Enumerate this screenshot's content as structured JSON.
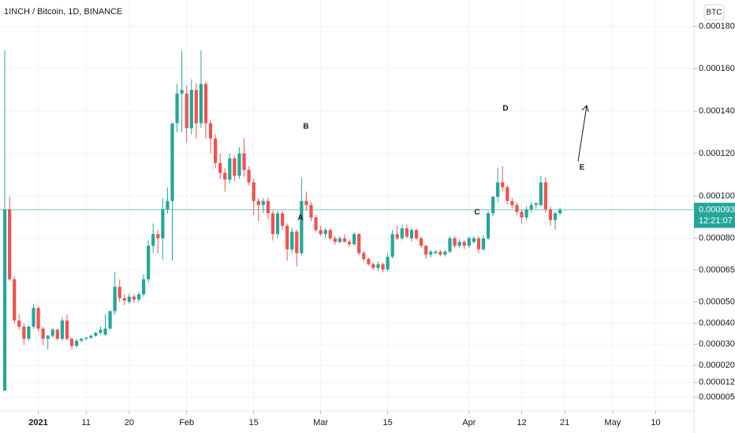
{
  "chart_data": {
    "type": "candlestick",
    "title": "1INCH / Bitcoin, 1D, BINANCE",
    "currency": "BTC",
    "up_color": "#26a69a",
    "down_color": "#ef5350",
    "grid": true,
    "x": [
      "2020-12-25",
      "2020-12-26",
      "2020-12-27",
      "2020-12-28",
      "2020-12-29",
      "2020-12-30",
      "2020-12-31",
      "2021-01-01",
      "2021-01-02",
      "2021-01-03",
      "2021-01-04",
      "2021-01-05",
      "2021-01-06",
      "2021-01-07",
      "2021-01-08",
      "2021-01-09",
      "2021-01-10",
      "2021-01-11",
      "2021-01-12",
      "2021-01-13",
      "2021-01-14",
      "2021-01-15",
      "2021-01-16",
      "2021-01-17",
      "2021-01-18",
      "2021-01-19",
      "2021-01-20",
      "2021-01-21",
      "2021-01-22",
      "2021-01-23",
      "2021-01-24",
      "2021-01-25",
      "2021-01-26",
      "2021-01-27",
      "2021-01-28",
      "2021-01-29",
      "2021-01-30",
      "2021-01-31",
      "2021-02-01",
      "2021-02-02",
      "2021-02-03",
      "2021-02-04",
      "2021-02-05",
      "2021-02-06",
      "2021-02-07",
      "2021-02-08",
      "2021-02-09",
      "2021-02-10",
      "2021-02-11",
      "2021-02-12",
      "2021-02-13",
      "2021-02-14",
      "2021-02-15",
      "2021-02-16",
      "2021-02-17",
      "2021-02-18",
      "2021-02-19",
      "2021-02-20",
      "2021-02-21",
      "2021-02-22",
      "2021-02-23",
      "2021-02-24",
      "2021-02-25",
      "2021-02-26",
      "2021-02-27",
      "2021-02-28",
      "2021-03-01",
      "2021-03-02",
      "2021-03-03",
      "2021-03-04",
      "2021-03-05",
      "2021-03-06",
      "2021-03-07",
      "2021-03-08",
      "2021-03-09",
      "2021-03-10",
      "2021-03-11",
      "2021-03-12",
      "2021-03-13",
      "2021-03-14",
      "2021-03-15",
      "2021-03-16",
      "2021-03-17",
      "2021-03-18",
      "2021-03-19",
      "2021-03-20",
      "2021-03-21",
      "2021-03-22",
      "2021-03-23",
      "2021-03-24",
      "2021-03-25",
      "2021-03-26",
      "2021-03-27",
      "2021-03-28",
      "2021-03-29",
      "2021-03-30",
      "2021-03-31",
      "2021-04-01",
      "2021-04-02",
      "2021-04-03",
      "2021-04-04",
      "2021-04-05",
      "2021-04-06",
      "2021-04-07",
      "2021-04-08",
      "2021-04-09",
      "2021-04-10",
      "2021-04-11",
      "2021-04-12",
      "2021-04-13",
      "2021-04-14",
      "2021-04-15",
      "2021-04-16",
      "2021-04-17",
      "2021-04-18",
      "2021-04-19",
      "2021-04-20"
    ],
    "open": [
      8.1e-06,
      9.37e-05,
      6.07e-05,
      4.12e-05,
      3.83e-05,
      3.26e-05,
      3.83e-05,
      4.71e-05,
      3.74e-05,
      3.26e-05,
      3.4e-05,
      3.69e-05,
      3.26e-05,
      4.12e-05,
      3.26e-05,
      2.92e-05,
      3.17e-05,
      3.26e-05,
      3.31e-05,
      3.4e-05,
      3.54e-05,
      3.46e-05,
      3.74e-05,
      4.56e-05,
      5.71e-05,
      5.18e-05,
      5e-05,
      5.25e-05,
      5.11e-05,
      5.36e-05,
      6.07e-05,
      7.65e-05,
      8.2e-05,
      8e-05,
      9.37e-05,
      9.76e-05,
      0.0001343,
      0.0001483,
      0.0001483,
      0.0001319,
      0.00015,
      0.0001343,
      0.0001528,
      0.0001343,
      0.0001271,
      0.0001155,
      0.0001109,
      0.0001077,
      0.0001177,
      0.0001095,
      0.00012,
      0.0001123,
      0.0001064,
      9.76e-05,
      9.57e-05,
      9.76e-05,
      9.18e-05,
      8.2e-05,
      9.18e-05,
      8.59e-05,
      7.48e-05,
      8.31e-05,
      7.3e-05,
      9.76e-05,
      9.57e-05,
      8.98e-05,
      8.39e-05,
      8.2e-05,
      8.39e-05,
      8e-05,
      7.83e-05,
      8e-05,
      7.83e-05,
      7.72e-05,
      8.2e-05,
      7.3e-05,
      7.02e-05,
      6.78e-05,
      6.6e-05,
      6.78e-05,
      6.53e-05,
      7.13e-05,
      8.2e-05,
      8e-05,
      8.47e-05,
      8e-05,
      8.39e-05,
      8e-05,
      7.65e-05,
      7.23e-05,
      7.3e-05,
      7.37e-05,
      7.23e-05,
      7.37e-05,
      8e-05,
      7.65e-05,
      7.83e-05,
      7.65e-05,
      7.83e-05,
      8e-05,
      7.48e-05,
      8e-05,
      9.18e-05,
      9.96e-05,
      0.0001064,
      0.0001041,
      9.76e-05,
      9.57e-05,
      9.25e-05,
      8.98e-05,
      9.37e-05,
      9.57e-05,
      9.57e-05,
      0.0001064,
      9.37e-05,
      8.86e-05,
      9.18e-05
    ],
    "high": [
      0.0001686,
      9.96e-05,
      6.2e-05,
      4.41e-05,
      3.97e-05,
      3.9e-05,
      4.9e-05,
      4.8e-05,
      3.83e-05,
      3.45e-05,
      3.75e-05,
      3.74e-05,
      4.26e-05,
      4.41e-05,
      3.31e-05,
      3.26e-05,
      3.31e-05,
      3.35e-05,
      3.45e-05,
      3.6e-05,
      3.83e-05,
      4.41e-05,
      4.6e-05,
      6.43e-05,
      6.07e-05,
      5.36e-05,
      5.4e-05,
      5.36e-05,
      5.5e-05,
      6.3e-05,
      7.9e-05,
      8.7e-05,
      8.4e-05,
      9.9e-05,
      0.000104,
      0.0001343,
      0.0001528,
      0.0001686,
      0.000152,
      0.000155,
      0.000153,
      0.0001686,
      0.000154,
      0.000136,
      0.000129,
      0.00012,
      0.000113,
      0.00012,
      0.000119,
      0.000123,
      0.0001271,
      0.000114,
      0.000108,
      9.9e-05,
      9.9e-05,
      9.9e-05,
      9.3e-05,
      9.3e-05,
      9.3e-05,
      8.7e-05,
      8.5e-05,
      8.4e-05,
      0.0001086,
      0.000102,
      9.7e-05,
      9.1e-05,
      8.6e-05,
      8.5e-05,
      8.45e-05,
      8.1e-05,
      8.1e-05,
      8.2e-05,
      7.95e-05,
      8.3e-05,
      8.25e-05,
      7.4e-05,
      7.1e-05,
      6.85e-05,
      6.9e-05,
      6.85e-05,
      7.3e-05,
      8.4e-05,
      8.6e-05,
      8.65e-05,
      8.65e-05,
      8.5e-05,
      8.45e-05,
      8.1e-05,
      7.7e-05,
      7.45e-05,
      7.45e-05,
      7.45e-05,
      7.45e-05,
      8.1e-05,
      8.1e-05,
      7.95e-05,
      7.9e-05,
      8.1e-05,
      8.1e-05,
      8.1e-05,
      8.15e-05,
      9.3e-05,
      0.0001,
      0.000113,
      0.000114,
      0.000105,
      9.9e-05,
      9.7e-05,
      9.35e-05,
      9.5e-05,
      9.7e-05,
      9.7e-05,
      0.0001095,
      0.000109,
      9.5e-05,
      9.25e-05,
      9.45e-05
    ],
    "low": [
      8.1e-06,
      6e-05,
      3.97e-05,
      3.69e-05,
      2.97e-05,
      3.17e-05,
      3.74e-05,
      3.6e-05,
      2.97e-05,
      2.76e-05,
      3.31e-05,
      3.17e-05,
      3.17e-05,
      3.17e-05,
      2.76e-05,
      2.87e-05,
      3.1e-05,
      3.2e-05,
      3.26e-05,
      3.35e-05,
      3.46e-05,
      3.4e-05,
      3.69e-05,
      4.41e-05,
      5e-05,
      4.85e-05,
      4.9e-05,
      4.95e-05,
      5e-05,
      5.25e-05,
      5.9e-05,
      7.3e-05,
      7.3e-05,
      7e-05,
      9.18e-05,
      6.95e-05,
      0.00013,
      0.00013,
      0.000125,
      0.000129,
      0.0001271,
      0.0001319,
      0.0001271,
      0.00012,
      0.000113,
      0.000108,
      0.000102,
      0.000106,
      0.000107,
      0.000108,
      0.000109,
      0.000105,
      9.1e-05,
      8.8e-05,
      9.2e-05,
      8.9e-05,
      7.9e-05,
      8e-05,
      8.4e-05,
      6.95e-05,
      7.3e-05,
      6.67e-05,
      7.2e-05,
      9.3e-05,
      8.8e-05,
      8.3e-05,
      8.1e-05,
      8e-05,
      7.9e-05,
      7.7e-05,
      7.75e-05,
      7.8e-05,
      7.6e-05,
      7.65e-05,
      7.2e-05,
      6.9e-05,
      6.7e-05,
      6.5e-05,
      6.45e-05,
      6.4e-05,
      6.45e-05,
      7.05e-05,
      7.9e-05,
      7.9e-05,
      8e-05,
      7.85e-05,
      7.9e-05,
      7.55e-05,
      7.05e-05,
      7.1e-05,
      7.25e-05,
      7.15e-05,
      7.15e-05,
      7.3e-05,
      7.55e-05,
      7.55e-05,
      7.5e-05,
      7.55e-05,
      7.75e-05,
      7.3e-05,
      7.4e-05,
      7.9e-05,
      9.05e-05,
      9.7e-05,
      0.000102,
      9.6e-05,
      9.4e-05,
      9.1e-05,
      8.7e-05,
      8.85e-05,
      9.2e-05,
      9.4e-05,
      9.5e-05,
      9.2e-05,
      8.6e-05,
      8.4e-05,
      9.1e-05
    ],
    "close": [
      9.37e-05,
      6.07e-05,
      4.12e-05,
      3.83e-05,
      3.26e-05,
      3.83e-05,
      4.71e-05,
      3.74e-05,
      3.26e-05,
      3.4e-05,
      3.69e-05,
      3.26e-05,
      4.12e-05,
      3.26e-05,
      2.92e-05,
      3.17e-05,
      3.26e-05,
      3.31e-05,
      3.4e-05,
      3.54e-05,
      3.69e-05,
      3.74e-05,
      4.56e-05,
      5.71e-05,
      5.18e-05,
      5.07e-05,
      5.25e-05,
      5.11e-05,
      5.36e-05,
      6.07e-05,
      7.65e-05,
      8.2e-05,
      8e-05,
      9.37e-05,
      9.76e-05,
      0.0001343,
      0.0001483,
      0.00015,
      0.0001319,
      0.00015,
      0.0001343,
      0.0001528,
      0.0001343,
      0.0001271,
      0.0001155,
      0.0001109,
      0.0001077,
      0.0001177,
      0.0001095,
      0.00012,
      0.0001123,
      0.0001064,
      9.76e-05,
      9.57e-05,
      9.76e-05,
      9.18e-05,
      8.2e-05,
      9.18e-05,
      8.59e-05,
      7.48e-05,
      8.31e-05,
      7.3e-05,
      9.76e-05,
      9.57e-05,
      8.98e-05,
      8.39e-05,
      8.2e-05,
      8.39e-05,
      8e-05,
      7.83e-05,
      8e-05,
      7.83e-05,
      7.72e-05,
      8.2e-05,
      7.3e-05,
      7.02e-05,
      6.78e-05,
      6.6e-05,
      6.78e-05,
      6.53e-05,
      7.13e-05,
      8.2e-05,
      8e-05,
      8.47e-05,
      8.08e-05,
      8.39e-05,
      8e-05,
      7.65e-05,
      7.23e-05,
      7.37e-05,
      7.37e-05,
      7.23e-05,
      7.37e-05,
      8e-05,
      7.65e-05,
      7.83e-05,
      7.65e-05,
      8e-05,
      8e-05,
      7.48e-05,
      8e-05,
      9.18e-05,
      9.96e-05,
      0.0001064,
      0.0001041,
      9.76e-05,
      9.57e-05,
      9.25e-05,
      8.98e-05,
      9.37e-05,
      9.57e-05,
      9.65e-05,
      0.0001064,
      9.37e-05,
      8.86e-05,
      9.18e-05,
      9.343e-05
    ],
    "xlim": [
      "2020-12-24",
      "2021-05-18"
    ],
    "xticks": [
      {
        "value": "2021-01-01",
        "label": "2021"
      },
      {
        "value": "2021-01-11",
        "label": "11"
      },
      {
        "value": "2021-01-20",
        "label": "20"
      },
      {
        "value": "2021-02-01",
        "label": "Feb"
      },
      {
        "value": "2021-02-15",
        "label": "15"
      },
      {
        "value": "2021-03-01",
        "label": "Mar"
      },
      {
        "value": "2021-03-15",
        "label": "15"
      },
      {
        "value": "2021-04-01",
        "label": "Apr"
      },
      {
        "value": "2021-04-12",
        "label": "12"
      },
      {
        "value": "2021-04-21",
        "label": "21"
      },
      {
        "value": "2021-05-01",
        "label": "May"
      },
      {
        "value": "2021-05-10",
        "label": "10"
      }
    ],
    "ylim": [
      3e-06,
      0.000185
    ],
    "yticks": [
      {
        "value": 0.00018,
        "label": "0.00018000"
      },
      {
        "value": 0.00016,
        "label": "0.00016000"
      },
      {
        "value": 0.00014,
        "label": "0.00014000"
      },
      {
        "value": 0.00012,
        "label": "0.00012000"
      },
      {
        "value": 0.0001,
        "label": "0.00010000"
      },
      {
        "value": 8e-05,
        "label": "0.00008000"
      },
      {
        "value": 6.5e-05,
        "label": "0.00006500"
      },
      {
        "value": 5e-05,
        "label": "0.00005000"
      },
      {
        "value": 4e-05,
        "label": "0.00004000"
      },
      {
        "value": 3e-05,
        "label": "0.00003000"
      },
      {
        "value": 2e-05,
        "label": "0.00002000"
      },
      {
        "value": 1.2e-05,
        "label": "0.00001200"
      },
      {
        "value": 5e-06,
        "label": "0.00000500"
      }
    ],
    "last_price": {
      "value": 9.343e-05,
      "label": "0.00009343"
    },
    "countdown": "12:21:07",
    "annotations": [
      "A",
      "B",
      "C",
      "D",
      "E"
    ]
  }
}
